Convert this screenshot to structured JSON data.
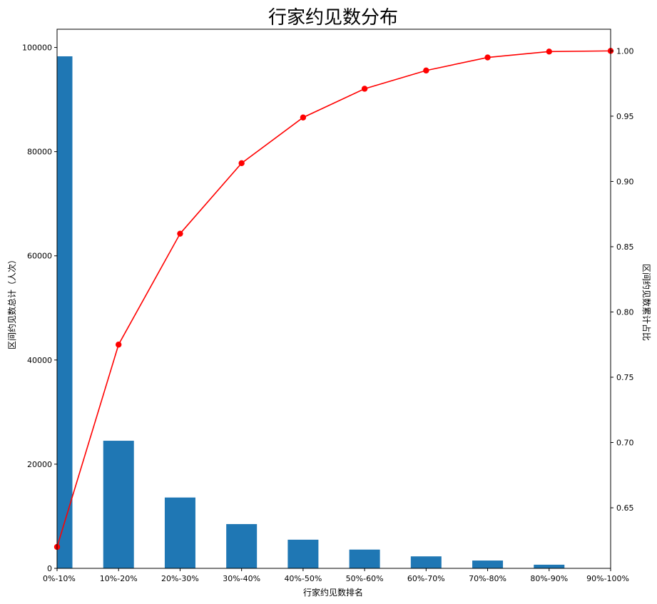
{
  "chart_data": {
    "type": "bar",
    "title": "行家约见数分布",
    "xlabel": "行家约见数排名",
    "ylabel": "区间约见数总计（人次）",
    "y2label": "区间约见数累计占比",
    "categories": [
      "0%-10%",
      "10%-20%",
      "20%-30%",
      "30%-40%",
      "40%-50%",
      "50%-60%",
      "60%-70%",
      "70%-80%",
      "80%-90%",
      "90%-100%"
    ],
    "series": [
      {
        "type": "bar",
        "axis": "left",
        "color": "#1f77b4",
        "values": [
          98300,
          24500,
          13600,
          8500,
          5500,
          3600,
          2300,
          1500,
          700,
          0
        ]
      },
      {
        "type": "line",
        "axis": "right",
        "color": "#ff0000",
        "marker": "circle",
        "values": [
          0.62,
          0.775,
          0.86,
          0.914,
          0.949,
          0.971,
          0.985,
          0.995,
          0.9995,
          1.0
        ]
      }
    ],
    "ylim": [
      0,
      103500
    ],
    "y2lim": [
      0.6036,
      1.0166
    ],
    "yticks": [
      0,
      20000,
      40000,
      60000,
      80000,
      100000
    ],
    "y2ticks": [
      0.65,
      0.7,
      0.75,
      0.8,
      0.85,
      0.9,
      0.95,
      1.0
    ],
    "grid": false,
    "legend": "none"
  }
}
